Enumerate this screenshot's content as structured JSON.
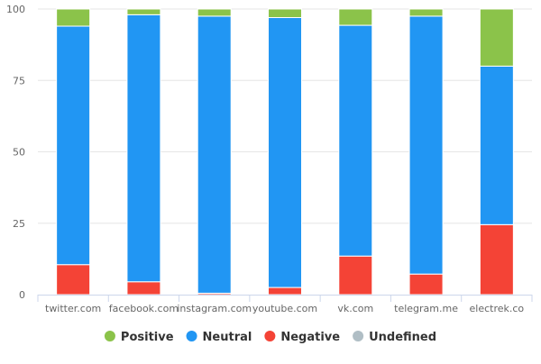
{
  "chart_data": {
    "type": "bar",
    "stacked": true,
    "categories": [
      "twitter.com",
      "facebook.com",
      "instagram.com",
      "youtube.com",
      "vk.com",
      "telegram.me",
      "electrek.co"
    ],
    "series": [
      {
        "name": "Negative",
        "color": "#f44336",
        "values": [
          10.5,
          4.5,
          0.5,
          2.5,
          13.5,
          7.2,
          24.5
        ]
      },
      {
        "name": "Neutral",
        "color": "#2196f3",
        "values": [
          83.5,
          93.5,
          97.0,
          94.5,
          80.8,
          90.3,
          55.5
        ]
      },
      {
        "name": "Positive",
        "color": "#8bc34a",
        "values": [
          6.0,
          2.0,
          2.5,
          3.0,
          5.7,
          2.5,
          20.0
        ]
      }
    ],
    "ylim": [
      0,
      100
    ],
    "yticks": [
      "0",
      "25",
      "50",
      "75",
      "100"
    ],
    "grid": true,
    "legend": {
      "placement": "bottom",
      "items": [
        {
          "name": "Positive",
          "color": "#8bc34a"
        },
        {
          "name": "Neutral",
          "color": "#2196f3"
        },
        {
          "name": "Negative",
          "color": "#f44336"
        },
        {
          "name": "Undefined",
          "color": "#b0bec5"
        }
      ]
    }
  }
}
